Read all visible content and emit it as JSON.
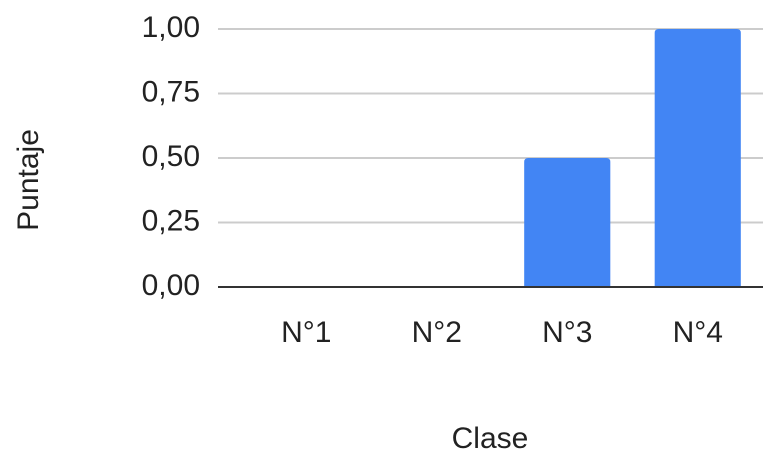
{
  "chart_data": {
    "type": "bar",
    "x_label": "Clase",
    "y_label": "Puntaje",
    "categories": [
      "N°1",
      "N°2",
      "N°3",
      "N°4"
    ],
    "values": [
      0,
      0,
      0.5,
      1
    ],
    "color": "#4285f4",
    "ylim": [
      0,
      1
    ],
    "yticks": [
      {
        "value": 0,
        "label": "0,00"
      },
      {
        "value": 0.25,
        "label": "0,25"
      },
      {
        "value": 0.5,
        "label": "0,50"
      },
      {
        "value": 0.75,
        "label": "0,75"
      },
      {
        "value": 1,
        "label": "1,00"
      }
    ],
    "grid": true
  }
}
